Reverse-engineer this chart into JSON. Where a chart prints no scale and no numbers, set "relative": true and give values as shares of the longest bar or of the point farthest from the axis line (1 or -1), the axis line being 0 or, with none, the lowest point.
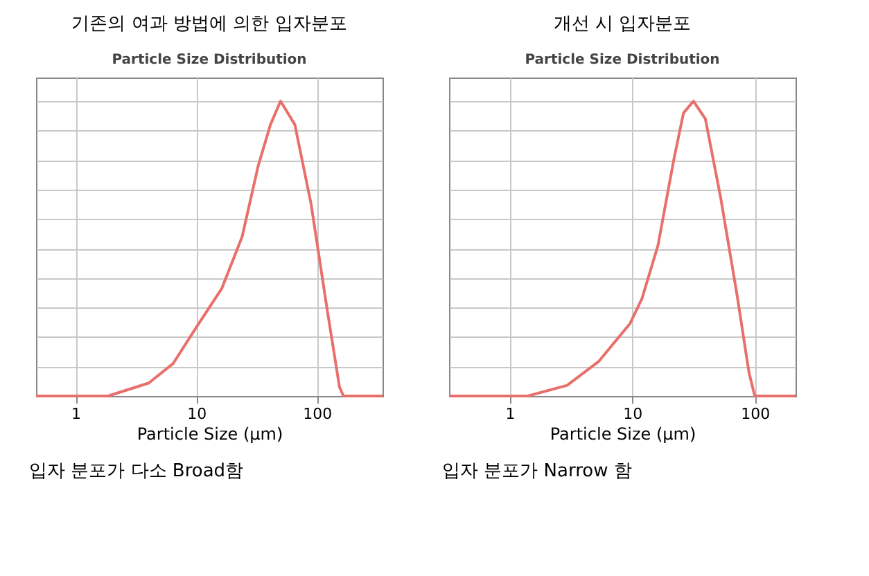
{
  "chart_data": [
    {
      "type": "line",
      "subtitle": "기존의 여과 방법에 의한 입자분포",
      "title": "Particle Size Distribution",
      "xlabel": "Particle Size (µm)",
      "log": "x",
      "relative": true,
      "grid": true,
      "xlim": [
        0.47,
        350
      ],
      "xticks": [
        1,
        10,
        100
      ],
      "annotations": [
        "입자 분포가 다소 Broad함"
      ],
      "series": [
        {
          "color": "#e8706c",
          "x": [
            0.47,
            1.86,
            4.04,
            6.43,
            10.2,
            16.3,
            24,
            32.6,
            41.2,
            50,
            65.7,
            89.6,
            122,
            154,
            166,
            350
          ],
          "values": [
            0,
            0,
            0.044,
            0.11,
            0.238,
            0.365,
            0.54,
            0.78,
            0.92,
            1,
            0.92,
            0.65,
            0.29,
            0.03,
            0,
            0
          ]
        }
      ]
    },
    {
      "type": "line",
      "subtitle": "개선 시 입자분포",
      "title": "Particle Size Distribution",
      "xlabel": "Particle Size (µm)",
      "log": "x",
      "relative": true,
      "grid": true,
      "xlim": [
        0.32,
        215
      ],
      "xticks": [
        1,
        10,
        100
      ],
      "annotations": [
        "입자 분포가 Narrow 함"
      ],
      "series": [
        {
          "color": "#e8706c",
          "x": [
            0.32,
            1.4,
            2.94,
            5.32,
            9.6,
            12.0,
            16.2,
            21.8,
            26.2,
            31.6,
            39.5,
            52.8,
            71.8,
            89.6,
            100,
            215
          ],
          "values": [
            0,
            0,
            0.036,
            0.117,
            0.246,
            0.33,
            0.51,
            0.8,
            0.96,
            1,
            0.94,
            0.67,
            0.34,
            0.08,
            0,
            0
          ]
        }
      ]
    }
  ]
}
